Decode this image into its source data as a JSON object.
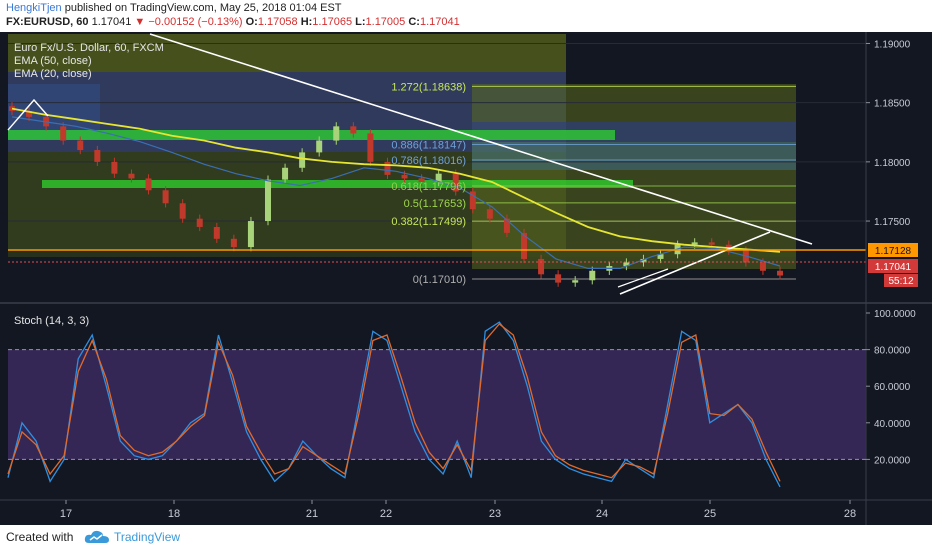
{
  "header": {
    "author": "HengkiTjen",
    "published_text": "published on TradingView.com, May 25, 2018 01:04 EST",
    "symbol": "FX:EURUSD, 60",
    "last": "1.17041",
    "change": "▼ −0.00152 (−0.13%)",
    "o_label": "O:",
    "o_value": "1.17058",
    "h_label": "H:",
    "h_value": "1.17065",
    "l_label": "L:",
    "l_value": "1.17005",
    "c_label": "C:",
    "c_value": "1.17041"
  },
  "legend": {
    "title": "Euro Fx/U.S. Dollar, 60, FXCM",
    "ema50": "EMA (50, close)",
    "ema20": "EMA (20, close)"
  },
  "price_badges": {
    "orange": "1.17128",
    "red": "1.17041",
    "timer": "55:12"
  },
  "fib_labels": [
    {
      "text": "1.272(1.18638)",
      "price": 1.18638,
      "color": "#c6e65a"
    },
    {
      "text": "0.886(1.18147)",
      "price": 1.18147,
      "color": "#6fa2d8"
    },
    {
      "text": "0.786(1.18016)",
      "price": 1.18016,
      "color": "#6fa2d8"
    },
    {
      "text": "0.618(1.17796)",
      "price": 1.17796,
      "color": "#8fd04a"
    },
    {
      "text": "0.5(1.17653)",
      "price": 1.17653,
      "color": "#9fd64f"
    },
    {
      "text": "0.382(1.17499)",
      "price": 1.17499,
      "color": "#c6e65a"
    },
    {
      "text": "0(1.17010)",
      "price": 1.1701,
      "color": "#b0b0b0"
    }
  ],
  "stoch": {
    "title": "Stoch (14, 3, 3)",
    "ticks": [
      "100.0000",
      "80.0000",
      "60.0000",
      "40.0000",
      "20.0000"
    ]
  },
  "footer": {
    "created": "Created with",
    "brand": "TradingView"
  },
  "colors": {
    "background": "#131722",
    "ema50": "#e6e632",
    "ema20": "#3b6fb3",
    "stoch_k": "#2f8fe0",
    "stoch_d": "#e06a2c",
    "stoch_band": "#3b2a5e",
    "candle_up": "#a9d37a",
    "candle_down": "#c0392b",
    "trendline": "#ffffff",
    "support_band": "#33cc33",
    "orange_line": "#ff9800"
  },
  "chart_data": [
    {
      "type": "candlestick",
      "title": "Euro Fx/U.S. Dollar, 60, FXCM",
      "x_ticks": [
        "17",
        "18",
        "21",
        "22",
        "23",
        "24",
        "25",
        "28"
      ],
      "y_ticks": [
        "1.19000",
        "1.18500",
        "1.18000",
        "1.17500"
      ],
      "ylim": [
        1.1685,
        1.1908
      ],
      "series": [
        {
          "name": "EMA (50, close)",
          "values": [
            1.1845,
            1.184,
            1.1836,
            1.1832,
            1.1828,
            1.1822,
            1.1818,
            1.1812,
            1.1808,
            1.1803,
            1.18,
            1.1798,
            1.1797,
            1.1795,
            1.179,
            1.1783,
            1.177,
            1.1757,
            1.1745,
            1.1737,
            1.1733,
            1.173,
            1.1728,
            1.1726,
            1.1724
          ]
        },
        {
          "name": "EMA (20, close)",
          "values": [
            1.1838,
            1.1834,
            1.183,
            1.1824,
            1.1817,
            1.1808,
            1.1798,
            1.179,
            1.1784,
            1.178,
            1.1786,
            1.1795,
            1.1792,
            1.1786,
            1.1778,
            1.1762,
            1.1738,
            1.1718,
            1.171,
            1.171,
            1.172,
            1.1728,
            1.1727,
            1.172,
            1.1712
          ]
        }
      ],
      "closes": [
        1.1843,
        1.1838,
        1.183,
        1.1818,
        1.181,
        1.18,
        1.179,
        1.1786,
        1.1776,
        1.1765,
        1.1752,
        1.1745,
        1.1735,
        1.1728,
        1.175,
        1.1785,
        1.1795,
        1.1808,
        1.1818,
        1.183,
        1.1824,
        1.18,
        1.1789,
        1.1786,
        1.1783,
        1.179,
        1.1775,
        1.176,
        1.1752,
        1.174,
        1.1718,
        1.1705,
        1.1698,
        1.17,
        1.1708,
        1.1712,
        1.1715,
        1.1718,
        1.1722,
        1.173,
        1.1732,
        1.173,
        1.1725,
        1.1715,
        1.1708,
        1.1704
      ]
    },
    {
      "type": "line",
      "title": "Stoch (14, 3, 3)",
      "ylim": [
        0,
        100
      ],
      "y_ticks": [
        100,
        80,
        60,
        40,
        20
      ],
      "series": [
        {
          "name": "%K",
          "values": [
            10,
            40,
            30,
            8,
            20,
            75,
            88,
            60,
            30,
            22,
            20,
            22,
            30,
            40,
            45,
            88,
            62,
            35,
            20,
            8,
            15,
            30,
            22,
            15,
            10,
            50,
            90,
            85,
            60,
            35,
            20,
            12,
            30,
            10,
            90,
            95,
            85,
            60,
            30,
            20,
            15,
            12,
            10,
            8,
            20,
            15,
            10,
            50,
            90,
            85,
            40,
            45,
            50,
            40,
            20,
            5
          ]
        },
        {
          "name": "%D",
          "values": [
            12,
            35,
            28,
            12,
            22,
            68,
            85,
            64,
            33,
            25,
            22,
            24,
            30,
            38,
            44,
            84,
            66,
            38,
            24,
            12,
            15,
            27,
            22,
            17,
            12,
            45,
            85,
            88,
            65,
            40,
            24,
            15,
            28,
            14,
            85,
            94,
            88,
            65,
            35,
            22,
            17,
            14,
            12,
            10,
            18,
            16,
            12,
            45,
            84,
            88,
            45,
            44,
            50,
            42,
            24,
            8
          ]
        }
      ]
    }
  ]
}
